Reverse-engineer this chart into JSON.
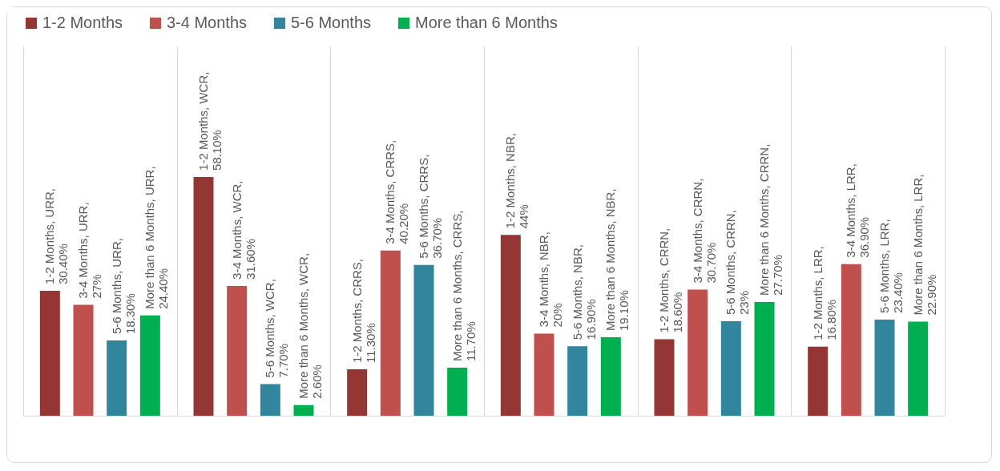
{
  "chart_data": {
    "type": "bar",
    "categories": [
      null,
      null,
      null,
      null,
      null,
      null
    ],
    "legend": "top",
    "grid": "x",
    "series": [
      {
        "name": "1-2 Months",
        "color": "#943634",
        "values": [
          30.4,
          58.1,
          11.3,
          44,
          18.6,
          16.8
        ],
        "value_labels": [
          "1-2 Months, URR, 30.40%",
          "1-2 Months, WCR, 58.10%",
          "1-2 Months, CRRS, 11.30%",
          "1-2 Months, NBR, 44%",
          "1-2 Months, CRRN, 18.60%",
          "1-2 Months, LRR, 16.80%"
        ]
      },
      {
        "name": "3-4 Months",
        "color": "#c0504d",
        "values": [
          27,
          31.6,
          40.2,
          20,
          30.7,
          36.9
        ],
        "value_labels": [
          "3-4 Months, URR, 27%",
          "3-4 Months, WCR, 31.60%",
          "3-4 Months, CRRS, 40.20%",
          "3-4 Months, NBR, 20%",
          "3-4 Months, CRRN, 30.70%",
          "3-4 Months, LRR, 36.90%"
        ]
      },
      {
        "name": "5-6 Months",
        "color": "#31859c",
        "values": [
          18.3,
          7.7,
          36.7,
          16.9,
          23,
          23.4
        ],
        "value_labels": [
          "5-6 Months, URR, 18.30%",
          "5-6 Months, WCR, 7.70%",
          "5-6 Months, CRRS, 36.70%",
          "5-6 Months, NBR, 16.90%",
          "5-6 Months, CRRN, 23%",
          "5-6 Months, LRR, 23.40%"
        ]
      },
      {
        "name": "More than 6 Months",
        "color": "#00b050",
        "values": [
          24.4,
          2.6,
          11.7,
          19.1,
          27.7,
          22.9
        ],
        "value_labels": [
          "More than 6 Months, URR, 24.40%",
          "More than 6 Months, WCR, 2.60%",
          "More than 6 Months, CRRS, 11.70%",
          "More than 6 Months, NBR, 19.10%",
          "More than 6 Months, CRRN, 27.70%",
          "More than 6 Months, LRR, 22.90%"
        ]
      }
    ]
  }
}
